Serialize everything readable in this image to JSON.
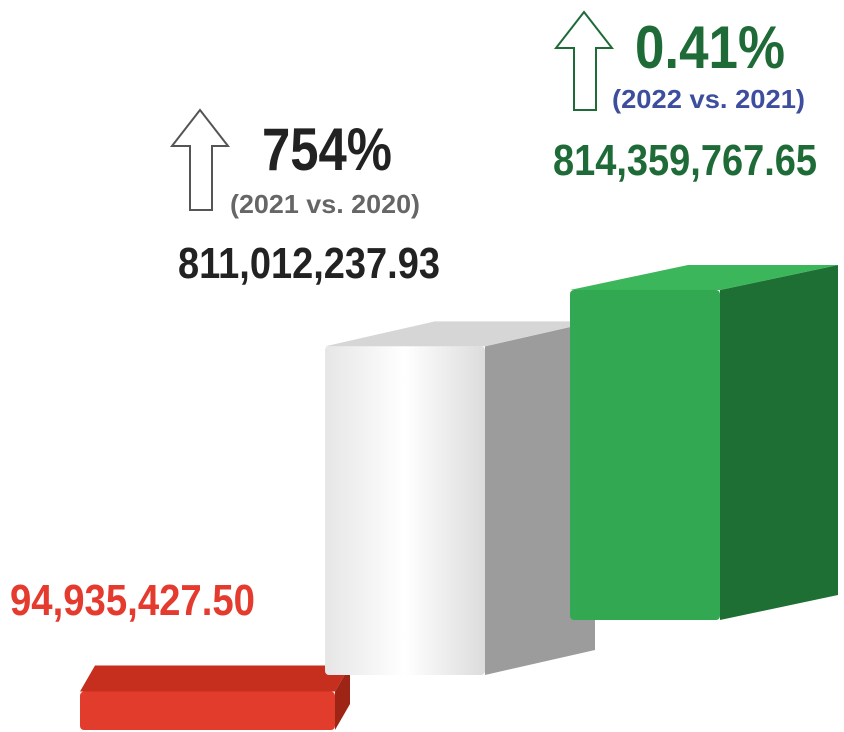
{
  "chart_data": {
    "type": "bar",
    "values": [
      94935427.5,
      811012237.93,
      814359767.65
    ],
    "value_labels": [
      "94,935,427.50",
      "811,012,237.93",
      "814,359,767.65"
    ],
    "colors": [
      "#e23c2c",
      "#f4f4f4",
      "#33a852"
    ],
    "annotations": [
      {
        "change": "754%",
        "period": "(2021 vs. 2020)"
      },
      {
        "change": "0.41%",
        "period": "(2022 vs. 2021)"
      }
    ]
  }
}
